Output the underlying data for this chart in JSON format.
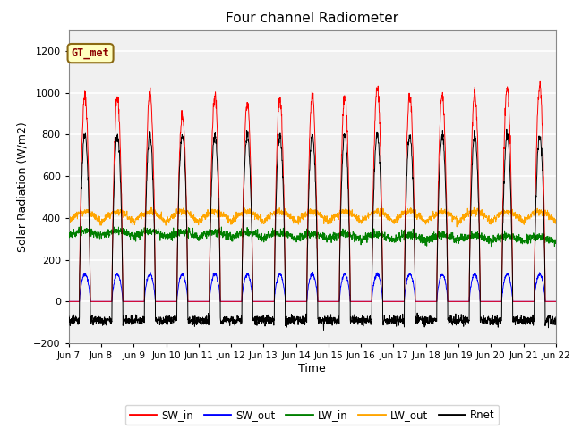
{
  "title": "Four channel Radiometer",
  "xlabel": "Time",
  "ylabel": "Solar Radiation (W/m2)",
  "ylim": [
    -200,
    1300
  ],
  "yticks": [
    -200,
    0,
    200,
    400,
    600,
    800,
    1000,
    1200
  ],
  "start_day": 7,
  "end_day": 22,
  "num_days": 15,
  "annotation_text": "GT_met",
  "annotation_color": "#8B0000",
  "annotation_bg": "#FFFFC0",
  "annotation_edge": "#8B6914",
  "SW_in_color": "red",
  "SW_out_color": "blue",
  "LW_in_color": "green",
  "LW_out_color": "orange",
  "Rnet_color": "black",
  "background_color": "#D8D8D8",
  "plot_bg_color": "#F0F0F0",
  "grid_color": "white",
  "xtick_labels": [
    "Jun 7",
    "Jun 8",
    "Jun 9",
    "Jun 10",
    "Jun 11",
    "Jun 12",
    "Jun 13",
    "Jun 14",
    "Jun 15",
    "Jun 16",
    "Jun 17",
    "Jun 18",
    "Jun 19",
    "Jun 20",
    "Jun 21",
    "Jun 22"
  ],
  "legend_labels": [
    "SW_in",
    "SW_out",
    "LW_in",
    "LW_out",
    "Rnet"
  ]
}
